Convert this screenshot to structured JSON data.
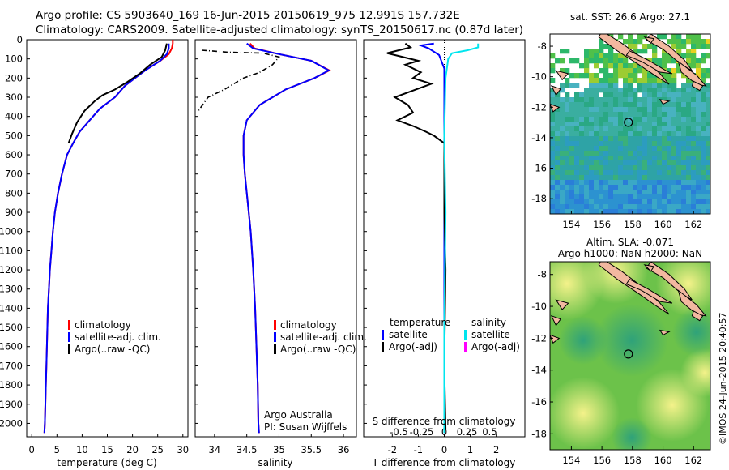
{
  "header": {
    "line1": "Argo profile: CS 5903640_169 16-Jun-2015 20150619_975 12.991S 157.732E",
    "line2": "Climatology: CARS2009. Satellite-adjusted climatology: synTS_20150617.nc (0.87d later)"
  },
  "footer": {
    "credit_line1": "Argo Australia",
    "credit_line2": "PI: Susan Wijffels",
    "stamp": "©IMOS 24-Jun-2015 20:40:57"
  },
  "colors": {
    "climatology": "#ff0000",
    "satellite": "#0000ff",
    "argo": "#000000",
    "salinity_satellite": "#00e5ee",
    "salinity_argo": "#ff00ff",
    "land": "#f2b8a0"
  },
  "chart_data": [
    {
      "id": "temperature",
      "type": "line",
      "xlabel": "temperature (deg C)",
      "ylabel": "",
      "xlim": [
        -1,
        31
      ],
      "ylim": [
        2070,
        0
      ],
      "xticks": [
        0,
        5,
        10,
        15,
        20,
        25,
        30
      ],
      "yticks": [
        0,
        100,
        200,
        300,
        400,
        500,
        600,
        700,
        800,
        900,
        1000,
        1100,
        1200,
        1300,
        1400,
        1500,
        1600,
        1700,
        1800,
        1900,
        2000
      ],
      "legend": [
        "climatology",
        "satellite-adj. clim.",
        "Argo(..raw -QC)"
      ],
      "series": [
        {
          "name": "climatology",
          "color": "#ff0000",
          "points": [
            [
              28.0,
              0
            ],
            [
              28.0,
              20
            ],
            [
              27.8,
              45
            ],
            [
              27.2,
              75
            ],
            [
              25.5,
              110
            ],
            [
              22.5,
              160
            ],
            [
              20.5,
              200
            ],
            [
              18.5,
              240
            ],
            [
              16.5,
              300
            ],
            [
              13.5,
              360
            ],
            [
              11.5,
              420
            ],
            [
              9.5,
              480
            ],
            [
              8.2,
              540
            ],
            [
              7.0,
              600
            ],
            [
              6.0,
              700
            ],
            [
              5.2,
              800
            ],
            [
              4.6,
              900
            ],
            [
              4.2,
              1000
            ],
            [
              3.9,
              1100
            ],
            [
              3.6,
              1200
            ],
            [
              3.4,
              1300
            ],
            [
              3.2,
              1400
            ],
            [
              3.1,
              1500
            ],
            [
              3.0,
              1600
            ],
            [
              2.9,
              1700
            ],
            [
              2.8,
              1800
            ],
            [
              2.7,
              1900
            ],
            [
              2.6,
              2000
            ],
            [
              2.5,
              2050
            ]
          ]
        },
        {
          "name": "satellite-adj. clim.",
          "color": "#0000ff",
          "points": [
            [
              27.2,
              20
            ],
            [
              27.2,
              45
            ],
            [
              26.8,
              75
            ],
            [
              25.5,
              110
            ],
            [
              22.5,
              160
            ],
            [
              20.5,
              200
            ],
            [
              18.5,
              240
            ],
            [
              16.5,
              300
            ],
            [
              13.5,
              360
            ],
            [
              11.5,
              420
            ],
            [
              9.5,
              480
            ],
            [
              8.2,
              540
            ],
            [
              7.0,
              600
            ],
            [
              6.0,
              700
            ],
            [
              5.2,
              800
            ],
            [
              4.6,
              900
            ],
            [
              4.2,
              1000
            ],
            [
              3.9,
              1100
            ],
            [
              3.6,
              1200
            ],
            [
              3.4,
              1300
            ],
            [
              3.2,
              1400
            ],
            [
              3.1,
              1500
            ],
            [
              3.0,
              1600
            ],
            [
              2.9,
              1700
            ],
            [
              2.8,
              1800
            ],
            [
              2.7,
              1900
            ],
            [
              2.6,
              2000
            ],
            [
              2.5,
              2050
            ]
          ]
        },
        {
          "name": "Argo(..raw -QC)",
          "color": "#000000",
          "points": [
            [
              26.8,
              20
            ],
            [
              26.5,
              55
            ],
            [
              25.8,
              90
            ],
            [
              23.5,
              130
            ],
            [
              21.5,
              175
            ],
            [
              19.0,
              220
            ],
            [
              16.5,
              260
            ],
            [
              14.0,
              290
            ],
            [
              12.5,
              320
            ],
            [
              10.5,
              370
            ],
            [
              9.0,
              430
            ],
            [
              8.0,
              490
            ],
            [
              7.3,
              540
            ]
          ]
        }
      ]
    },
    {
      "id": "salinity",
      "type": "line",
      "xlabel": "salinity",
      "ylabel": "",
      "xlim": [
        33.7,
        36.2
      ],
      "ylim": [
        2070,
        0
      ],
      "xticks": [
        34,
        34.5,
        35,
        35.5,
        36
      ],
      "xticklabels": [
        "34",
        "34.5",
        "35",
        "35.5",
        "36"
      ],
      "legend": [
        "climatology",
        "satellite-adj. clim.",
        "Argo(..raw -QC)"
      ],
      "series": [
        {
          "name": "climatology",
          "color": "#ff0000",
          "points": [
            [
              34.55,
              20
            ],
            [
              34.62,
              45
            ],
            [
              35.0,
              75
            ],
            [
              35.5,
              110
            ],
            [
              35.78,
              160
            ],
            [
              35.55,
              200
            ],
            [
              35.1,
              260
            ],
            [
              34.7,
              340
            ],
            [
              34.5,
              420
            ],
            [
              34.45,
              500
            ],
            [
              34.45,
              600
            ],
            [
              34.47,
              700
            ],
            [
              34.5,
              800
            ],
            [
              34.53,
              900
            ],
            [
              34.56,
              1000
            ],
            [
              34.6,
              1200
            ],
            [
              34.63,
              1400
            ],
            [
              34.65,
              1600
            ],
            [
              34.67,
              1800
            ],
            [
              34.68,
              2000
            ],
            [
              34.69,
              2050
            ]
          ]
        },
        {
          "name": "satellite-adj. clim.",
          "color": "#0000ff",
          "points": [
            [
              34.5,
              20
            ],
            [
              34.6,
              45
            ],
            [
              35.0,
              75
            ],
            [
              35.5,
              110
            ],
            [
              35.77,
              160
            ],
            [
              35.55,
              200
            ],
            [
              35.1,
              260
            ],
            [
              34.7,
              340
            ],
            [
              34.5,
              420
            ],
            [
              34.45,
              500
            ],
            [
              34.45,
              600
            ],
            [
              34.47,
              700
            ],
            [
              34.5,
              800
            ],
            [
              34.53,
              900
            ],
            [
              34.56,
              1000
            ],
            [
              34.6,
              1200
            ],
            [
              34.63,
              1400
            ],
            [
              34.65,
              1600
            ],
            [
              34.67,
              1800
            ],
            [
              34.68,
              2000
            ],
            [
              34.69,
              2050
            ]
          ]
        },
        {
          "name": "Argo(..raw -QC)",
          "color": "#000000",
          "dashed": true,
          "points": [
            [
              33.8,
              55
            ],
            [
              34.2,
              65
            ],
            [
              34.75,
              70
            ],
            [
              35.0,
              90
            ],
            [
              34.9,
              130
            ],
            [
              34.7,
              170
            ],
            [
              34.45,
              200
            ],
            [
              34.15,
              260
            ],
            [
              33.9,
              300
            ],
            [
              33.75,
              370
            ]
          ]
        }
      ]
    },
    {
      "id": "difference",
      "type": "line",
      "xlabel": "T difference from climatology",
      "xlabel_top": "S difference from climatology",
      "ylabel": "",
      "xlim": [
        -3.1,
        3.1
      ],
      "ylim": [
        2070,
        0
      ],
      "xticks": [
        -2,
        -1,
        0,
        1,
        2
      ],
      "xticklabels": [
        "-2",
        "-1",
        "0",
        "1",
        "2"
      ],
      "sticks": [
        -0.5,
        -0.25,
        0,
        0.25,
        0.5
      ],
      "sticklabels": [
        "-0.5",
        "-0.25",
        "0",
        "0.25",
        "0.5"
      ],
      "legend": [
        "temperature",
        "satellite",
        "Argo(-adj)",
        "salinity",
        "satellite",
        "Argo(-adj)"
      ],
      "series": [
        {
          "name": "T satellite",
          "color": "#0000ff",
          "points": [
            [
              -0.4,
              20
            ],
            [
              -0.9,
              30
            ],
            [
              -0.6,
              45
            ],
            [
              -0.2,
              80
            ],
            [
              0.0,
              150
            ],
            [
              0.0,
              2050
            ]
          ]
        },
        {
          "name": "T Argo(-adj)",
          "color": "#000000",
          "points": [
            [
              -1.5,
              20
            ],
            [
              -1.3,
              40
            ],
            [
              -2.2,
              70
            ],
            [
              -1.0,
              110
            ],
            [
              -1.5,
              130
            ],
            [
              -0.9,
              170
            ],
            [
              -1.2,
              200
            ],
            [
              -0.5,
              230
            ],
            [
              -0.9,
              250
            ],
            [
              -1.9,
              300
            ],
            [
              -1.4,
              340
            ],
            [
              -1.2,
              380
            ],
            [
              -1.8,
              420
            ],
            [
              -1.2,
              450
            ],
            [
              -0.7,
              480
            ],
            [
              -0.4,
              500
            ],
            [
              0.0,
              540
            ],
            [
              0.0,
              900
            ],
            [
              0.05,
              1200
            ],
            [
              0.0,
              1700
            ],
            [
              0.05,
              2030
            ]
          ]
        },
        {
          "name": "S satellite",
          "color": "#00e5ee",
          "points": [
            [
              1.3,
              20
            ],
            [
              1.3,
              40
            ],
            [
              0.9,
              55
            ],
            [
              0.3,
              70
            ],
            [
              0.15,
              100
            ],
            [
              0.05,
              200
            ],
            [
              0.0,
              500
            ],
            [
              0.05,
              900
            ],
            [
              0.0,
              1500
            ],
            [
              0.0,
              2050
            ]
          ]
        },
        {
          "name": "S Argo(-adj)",
          "color": "#ff00ff",
          "points": []
        }
      ]
    },
    {
      "id": "map-sst",
      "type": "heatmap",
      "title": "sat. SST: 26.6 Argo: 27.1",
      "xlim": [
        152.6,
        163.1
      ],
      "ylim": [
        -19,
        -7.2
      ],
      "xticks": [
        154,
        156,
        158,
        160,
        162
      ],
      "yticks": [
        -8,
        -10,
        -12,
        -14,
        -16,
        -18
      ],
      "marker": [
        157.732,
        -12.991
      ]
    },
    {
      "id": "map-sla",
      "type": "heatmap",
      "title_line1": "Altim. SLA: -0.071",
      "title_line2": "Argo h1000: NaN h2000: NaN",
      "xlim": [
        152.6,
        163.1
      ],
      "ylim": [
        -19,
        -7.2
      ],
      "xticks": [
        154,
        156,
        158,
        160,
        162
      ],
      "yticks": [
        -8,
        -10,
        -12,
        -14,
        -16,
        -18
      ],
      "marker": [
        157.732,
        -12.991
      ]
    }
  ]
}
